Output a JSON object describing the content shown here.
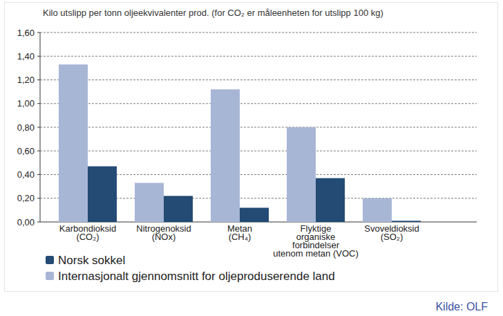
{
  "chart_data": {
    "type": "bar",
    "title": "Kilo utslipp per tonn oljeekvivalenter prod. (for CO₂ er måleenheten for utslipp 100 kg)",
    "categories": [
      "Karbondioksid\n(CO₂)",
      "Nitrogenoksid\n(NOx)",
      "Metan\n(CH₄)",
      "Flyktige\norganiske\nforbindelser\nutenom metan (VOC)",
      "Svoveldioksid\n(SO₂)"
    ],
    "series": [
      {
        "name": "Norsk sokkel",
        "color": "#234b74",
        "values": [
          0.47,
          0.22,
          0.12,
          0.37,
          0.01
        ]
      },
      {
        "name": "Internasjonalt gjennomsnitt for oljeproduserende land",
        "color": "#a8b6d6",
        "values": [
          1.33,
          0.33,
          1.12,
          0.8,
          0.2
        ]
      }
    ],
    "ylim": [
      0,
      1.6
    ],
    "yticks": [
      {
        "value": 0,
        "label": "0,00"
      },
      {
        "value": 0.2,
        "label": "0,20"
      },
      {
        "value": 0.4,
        "label": "0,40"
      },
      {
        "value": 0.6,
        "label": "0,60"
      },
      {
        "value": 0.8,
        "label": "0,80"
      },
      {
        "value": 1.0,
        "label": "1,00"
      },
      {
        "value": 1.2,
        "label": "1,20"
      },
      {
        "value": 1.4,
        "label": "1,40"
      },
      {
        "value": 1.6,
        "label": "1,60"
      }
    ],
    "grid": true,
    "legend": "bottom-left",
    "source": "Kilde: OLF"
  }
}
